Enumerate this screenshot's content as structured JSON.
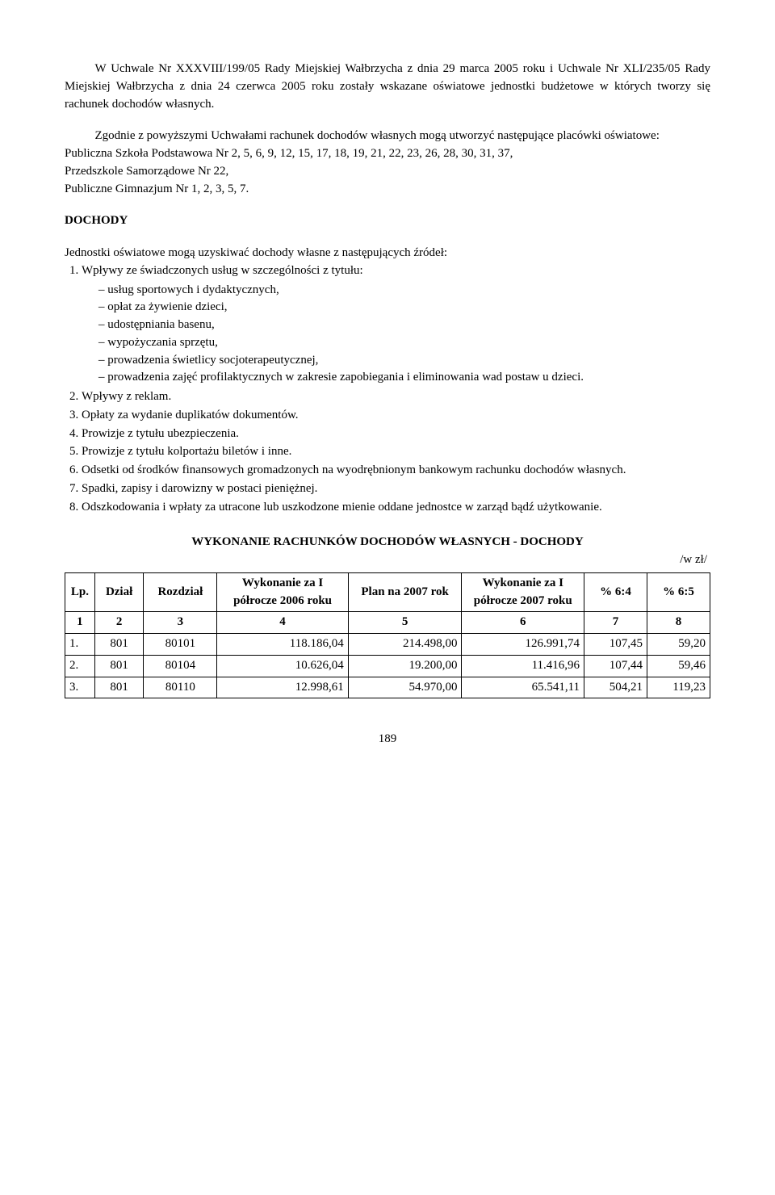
{
  "para1": "W Uchwale Nr XXXVIII/199/05 Rady Miejskiej Wałbrzycha z dnia 29 marca 2005 roku i Uchwale Nr XLI/235/05 Rady Miejskiej Wałbrzycha z dnia 24 czerwca 2005 roku zostały wskazane oświatowe jednostki budżetowe w których tworzy się rachunek dochodów własnych.",
  "para2_lead": "Zgodnie z powyższymi Uchwałami rachunek dochodów własnych mogą utworzyć następujące placówki oświatowe:",
  "para2_l1": "Publiczna Szkoła Podstawowa Nr 2, 5, 6, 9, 12, 15, 17, 18, 19, 21, 22, 23, 26, 28, 30, 31, 37,",
  "para2_l2": "Przedszkole Samorządowe Nr 22,",
  "para2_l3": "Publiczne Gimnazjum Nr 1, 2, 3, 5, 7.",
  "dochody_heading": "DOCHODY",
  "dochody_intro": "Jednostki oświatowe mogą uzyskiwać dochody własne z następujących źródeł:",
  "item1": "Wpływy ze świadczonych usług w szczególności z tytułu:",
  "sub1": "usług sportowych i dydaktycznych,",
  "sub2": "opłat za żywienie dzieci,",
  "sub3": "udostępniania basenu,",
  "sub4": "wypożyczania sprzętu,",
  "sub5": "prowadzenia świetlicy socjoterapeutycznej,",
  "sub6": "prowadzenia zajęć profilaktycznych w zakresie zapobiegania i eliminowania wad postaw u dzieci.",
  "item2": "Wpływy z reklam.",
  "item3": "Opłaty za wydanie duplikatów dokumentów.",
  "item4": "Prowizje z tytułu ubezpieczenia.",
  "item5": "Prowizje z tytułu kolportażu biletów i inne.",
  "item6": "Odsetki od środków finansowych gromadzonych na wyodrębnionym bankowym rachunku dochodów własnych.",
  "item7": "Spadki, zapisy i darowizny w postaci pieniężnej.",
  "item8": "Odszkodowania i wpłaty za utracone lub uszkodzone mienie oddane jednostce w zarząd bądź użytkowanie.",
  "table_title": "WYKONANIE RACHUNKÓW DOCHODÓW WŁASNYCH - DOCHODY",
  "currency_note": "/w zł/",
  "table": {
    "columns": [
      "Lp.",
      "Dział",
      "Rozdział",
      "Wykonanie za I półrocze 2006 roku",
      "Plan na 2007 rok",
      "Wykonanie za I półrocze 2007 roku",
      "% 6:4",
      "% 6:5"
    ],
    "header_row2": [
      "1",
      "2",
      "3",
      "4",
      "5",
      "6",
      "7",
      "8"
    ],
    "col_widths": [
      "34px",
      "56px",
      "84px",
      "150px",
      "130px",
      "140px",
      "72px",
      "72px"
    ],
    "rows": [
      [
        "1.",
        "801",
        "80101",
        "118.186,04",
        "214.498,00",
        "126.991,74",
        "107,45",
        "59,20"
      ],
      [
        "2.",
        "801",
        "80104",
        "10.626,04",
        "19.200,00",
        "11.416,96",
        "107,44",
        "59,46"
      ],
      [
        "3.",
        "801",
        "80110",
        "12.998,61",
        "54.970,00",
        "65.541,11",
        "504,21",
        "119,23"
      ]
    ]
  },
  "page_number": "189"
}
